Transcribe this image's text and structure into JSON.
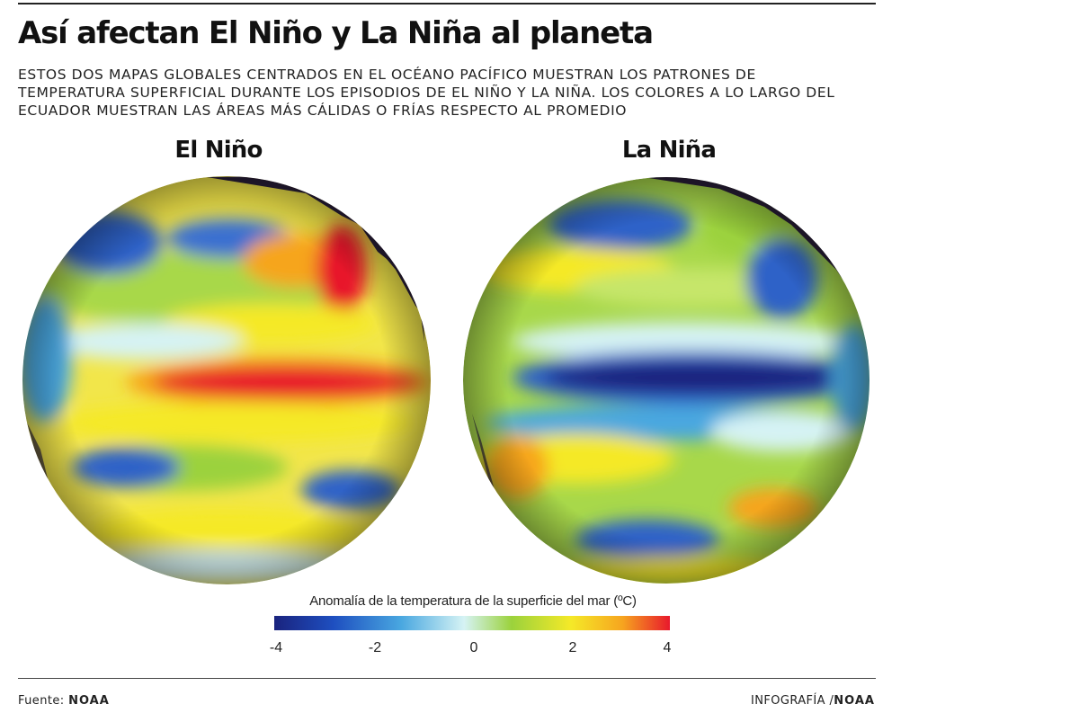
{
  "header": {
    "title": "Así afectan El Niño y La Niña al planeta",
    "subtitle": "ESTOS DOS MAPAS GLOBALES CENTRADOS EN EL OCÉANO PACÍFICO MUESTRAN LOS PATRONES DE TEMPERATURA SUPERFICIAL DURANTE LOS EPISODIOS DE EL NIÑO Y LA NIÑA. LOS COLORES A LO LARGO DEL ECUADOR MUESTRAN LAS ÁREAS MÁS CÁLIDAS O FRÍAS RESPECTO AL PROMEDIO"
  },
  "maps": [
    {
      "label": "El Niño"
    },
    {
      "label": "La Niña"
    }
  ],
  "legend": {
    "title": "Anomalía de la temperatura de la superficie del mar (ºC)",
    "ticks": [
      "-4",
      "-2",
      "0",
      "2",
      "4"
    ],
    "colors": [
      "#1a237e",
      "#1e4fc0",
      "#49a7e0",
      "#d6f3f4",
      "#9bd23c",
      "#f5e928",
      "#f6a51f",
      "#e8192c"
    ]
  },
  "footer": {
    "source_prefix": "Fuente:",
    "source_name": "NOAA",
    "credit_prefix": "INFOGRAFÍA /",
    "credit_name": "NOAA"
  }
}
